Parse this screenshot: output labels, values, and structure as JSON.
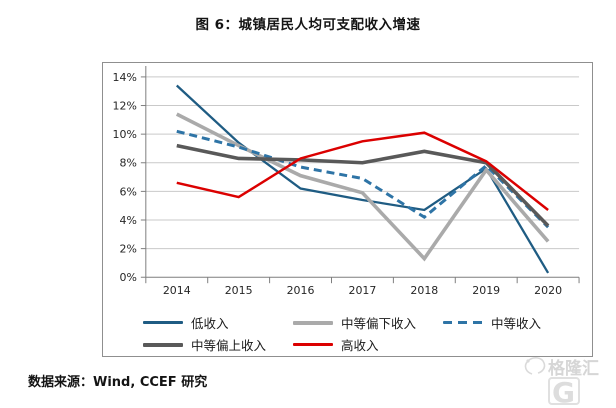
{
  "title": "图 6：城镇居民人均可支配收入增速",
  "source": "数据来源：Wind, CCEF 研究",
  "watermark": {
    "text": "格隆汇",
    "letter": "G"
  },
  "chart_data": {
    "type": "line",
    "title": "图 6：城镇居民人均可支配收入增速",
    "x": [
      "2014",
      "2015",
      "2016",
      "2017",
      "2018",
      "2019",
      "2020"
    ],
    "xlabel": "",
    "ylabel": "",
    "y_unit": "%",
    "ylim": [
      0,
      14
    ],
    "y_tick_step": 2,
    "y_tick_labels": [
      "0%",
      "2%",
      "4%",
      "6%",
      "8%",
      "10%",
      "12%",
      "14%"
    ],
    "grid": true,
    "legend_position": "bottom",
    "colors": {
      "grid": "#c9c9c9",
      "axis": "#7f7f7f",
      "frame": "#8f8f8f",
      "tick_text": "#262626"
    },
    "series": [
      {
        "name": "低收入",
        "color": "#1f5c83",
        "style": "solid",
        "width": 2.3,
        "values": [
          13.4,
          9.4,
          6.2,
          5.4,
          4.7,
          7.6,
          0.3
        ]
      },
      {
        "name": "中等偏下收入",
        "color": "#aaaaaa",
        "style": "solid",
        "width": 3.6,
        "values": [
          11.4,
          9.2,
          7.1,
          5.9,
          1.3,
          7.5,
          2.5
        ]
      },
      {
        "name": "中等收入",
        "color": "#2e74a6",
        "style": "dashed",
        "width": 3.0,
        "values": [
          10.2,
          9.1,
          7.7,
          6.9,
          4.2,
          7.8,
          3.5
        ]
      },
      {
        "name": "中等偏上收入",
        "color": "#595959",
        "style": "solid",
        "width": 3.6,
        "values": [
          9.2,
          8.3,
          8.2,
          8.0,
          8.8,
          8.0,
          3.6
        ]
      },
      {
        "name": "高收入",
        "color": "#db0000",
        "style": "solid",
        "width": 2.5,
        "values": [
          6.6,
          5.6,
          8.3,
          9.5,
          10.1,
          8.1,
          4.7
        ]
      }
    ]
  }
}
